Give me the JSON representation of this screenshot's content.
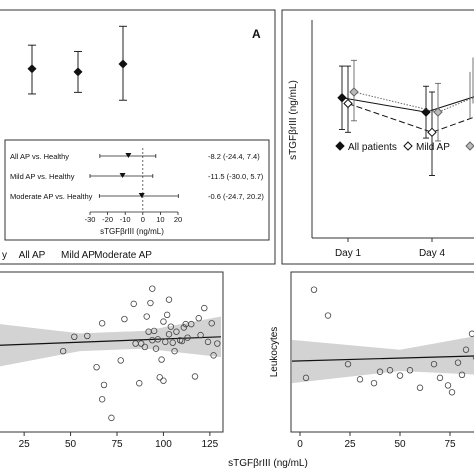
{
  "chart_data": [
    {
      "type": "scatter",
      "panel": "A (top)",
      "panel_label": "A",
      "categories": [
        "All AP",
        "Mild AP",
        "Moderate AP"
      ],
      "category_axis_prefix": "y",
      "points": [
        {
          "category": "All AP",
          "mean": 84,
          "low": 68,
          "high": 99
        },
        {
          "category": "Mild AP",
          "mean": 82,
          "low": 69,
          "high": 95
        },
        {
          "category": "Moderate AP",
          "mean": 87,
          "low": 64,
          "high": 111
        }
      ],
      "ylim": [
        40,
        115
      ]
    },
    {
      "type": "scatter",
      "panel": "A (inset forest plot)",
      "rows": [
        {
          "label": "All AP vs. Healthy",
          "estimate": -8.2,
          "ci": [
            -24.4,
            7.4
          ],
          "text": "-8.2 (-24.4, 7.4)"
        },
        {
          "label": "Mild AP vs. Healthy",
          "estimate": -11.5,
          "ci": [
            -30.0,
            5.7
          ],
          "text": "-11.5 (-30.0, 5.7)"
        },
        {
          "label": "Moderate  AP vs. Healthy",
          "estimate": -0.6,
          "ci": [
            -24.7,
            20.2
          ],
          "text": "-0.6 (-24.7, 20.2)"
        }
      ],
      "xticks": [
        "-30",
        "-20",
        "-10",
        "0",
        "10",
        "20"
      ],
      "xlim": [
        -30,
        20
      ],
      "xlabel": "sTGFβrIII (ng/mL)"
    },
    {
      "type": "line",
      "panel": "B",
      "ylabel": "sTGFβrIII (ng/mL)",
      "categories": [
        "Day 1",
        "Day 4"
      ],
      "series": [
        {
          "name": "All patients",
          "marker": "filled-diamond",
          "values": [
            88,
            83
          ],
          "low": [
            77,
            74
          ],
          "high": [
            99,
            92
          ]
        },
        {
          "name": "Mild AP",
          "marker": "open-diamond",
          "values": [
            86,
            76
          ],
          "low": [
            76,
            61
          ],
          "high": [
            99,
            90
          ]
        },
        {
          "name": "",
          "marker": "grey-diamond",
          "values": [
            90,
            83
          ],
          "low": [
            80,
            73
          ],
          "high": [
            101,
            93
          ]
        }
      ],
      "extra_points": [
        {
          "x": 2.0,
          "y": 89
        },
        {
          "x": 2.3,
          "y": 94
        }
      ],
      "legend": [
        "All patients",
        "Mild AP"
      ],
      "ylim": [
        40,
        115
      ]
    },
    {
      "type": "scatter",
      "panel": "bottom-left",
      "xlabel": "sTGFβrIII (ng/mL)",
      "xticks": [
        "25",
        "50",
        "75",
        "100",
        "125"
      ],
      "xlim": [
        12,
        131
      ],
      "ylim": [
        2,
        20
      ],
      "points": [
        [
          46,
          11.1
        ],
        [
          52,
          12.8
        ],
        [
          59,
          12.9
        ],
        [
          64,
          9.2
        ],
        [
          67,
          14.4
        ],
        [
          67,
          5.4
        ],
        [
          68,
          7.1
        ],
        [
          72,
          3.2
        ],
        [
          77,
          10.0
        ],
        [
          79,
          14.9
        ],
        [
          84,
          16.7
        ],
        [
          85,
          12.0
        ],
        [
          87,
          7.3
        ],
        [
          88,
          12.0
        ],
        [
          90,
          11.6
        ],
        [
          91,
          15.2
        ],
        [
          92,
          13.4
        ],
        [
          93,
          16.8
        ],
        [
          94,
          18.5
        ],
        [
          94,
          12.4
        ],
        [
          95,
          13.5
        ],
        [
          96,
          11.4
        ],
        [
          97,
          12.5
        ],
        [
          98,
          8.0
        ],
        [
          99,
          10.1
        ],
        [
          100,
          14.6
        ],
        [
          100,
          7.6
        ],
        [
          101,
          12.2
        ],
        [
          102,
          15.4
        ],
        [
          103,
          13.1
        ],
        [
          103,
          17.2
        ],
        [
          104,
          14.0
        ],
        [
          105,
          12.1
        ],
        [
          106,
          11.1
        ],
        [
          107,
          13.4
        ],
        [
          109,
          12.4
        ],
        [
          110,
          12.3
        ],
        [
          111,
          13.9
        ],
        [
          112,
          14.3
        ],
        [
          113,
          12.7
        ],
        [
          115,
          14.3
        ],
        [
          117,
          8.1
        ],
        [
          119,
          15.0
        ],
        [
          120,
          13.0
        ],
        [
          122,
          16.2
        ],
        [
          124,
          12.2
        ],
        [
          126,
          14.4
        ],
        [
          127,
          10.6
        ],
        [
          129,
          12.0
        ]
      ],
      "fit": {
        "x": [
          12,
          131
        ],
        "y": [
          11.8,
          12.8
        ]
      },
      "band_low": [
        [
          12,
          9.3
        ],
        [
          55,
          11.1
        ],
        [
          90,
          11.4
        ],
        [
          131,
          10.4
        ]
      ],
      "band_high": [
        [
          12,
          14.3
        ],
        [
          55,
          13.2
        ],
        [
          90,
          13.5
        ],
        [
          131,
          15.2
        ]
      ]
    },
    {
      "type": "scatter",
      "panel": "bottom-right",
      "ylabel": "Leukocytes",
      "xticks": [
        "0",
        "25",
        "50",
        "75"
      ],
      "xlim": [
        -4,
        90
      ],
      "ylim": [
        2,
        22
      ],
      "points": [
        [
          3,
          8.6
        ],
        [
          7,
          20.2
        ],
        [
          14,
          16.8
        ],
        [
          24,
          10.4
        ],
        [
          30,
          8.4
        ],
        [
          37,
          7.9
        ],
        [
          40,
          9.4
        ],
        [
          45,
          9.6
        ],
        [
          50,
          8.9
        ],
        [
          55,
          9.6
        ],
        [
          60,
          7.3
        ],
        [
          67,
          10.4
        ],
        [
          70,
          8.6
        ],
        [
          74,
          7.6
        ],
        [
          76,
          6.7
        ],
        [
          79,
          10.6
        ],
        [
          81,
          9.0
        ],
        [
          83,
          12.3
        ],
        [
          86,
          14.4
        ],
        [
          88,
          11.3
        ]
      ],
      "fit": {
        "x": [
          -4,
          90
        ],
        "y": [
          10.8,
          11.5
        ]
      },
      "band_low": [
        [
          -4,
          7.9
        ],
        [
          50,
          9.5
        ],
        [
          90,
          9.0
        ]
      ],
      "band_high": [
        [
          -4,
          13.6
        ],
        [
          50,
          12.3
        ],
        [
          90,
          14.2
        ]
      ]
    }
  ]
}
